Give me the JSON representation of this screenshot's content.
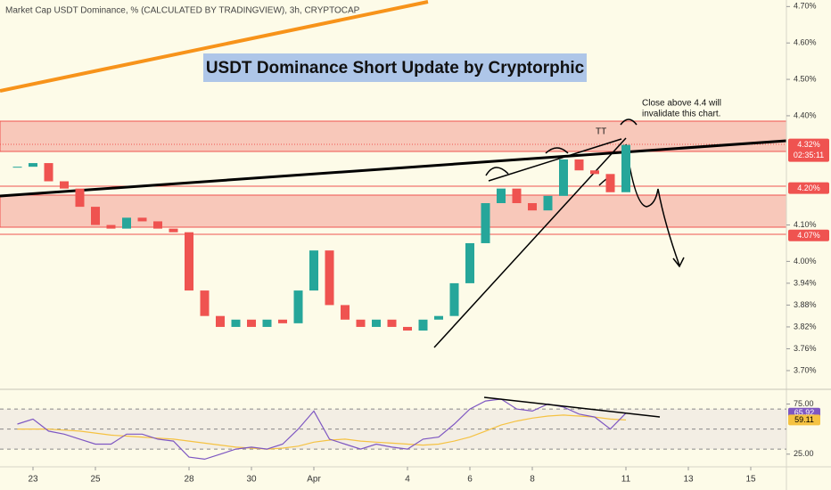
{
  "chart_data": {
    "type": "candlestick",
    "subtitle": "Market Cap USDT Dominance, % (CALCULATED BY TRADINGVIEW), 3h, CRYPTOCAP",
    "title": "USDT Dominance Short Update by Cryptorphic",
    "categories": [
      null,
      "23",
      null,
      null,
      null,
      "25",
      null,
      null,
      null,
      null,
      null,
      "28",
      null,
      null,
      null,
      "30",
      null,
      null,
      null,
      "Apr",
      null,
      null,
      null,
      null,
      null,
      "4",
      null,
      null,
      null,
      "6",
      null,
      null,
      null,
      "8",
      null,
      null,
      null,
      null,
      null,
      "11",
      null,
      null,
      null,
      "13",
      null,
      null,
      null,
      "15",
      null
    ],
    "values": [
      4.26,
      4.27,
      4.22,
      4.2,
      4.15,
      4.1,
      4.09,
      4.12,
      4.11,
      4.09,
      4.08,
      3.92,
      3.85,
      3.82,
      3.84,
      3.82,
      3.84,
      3.83,
      3.92,
      4.03,
      3.88,
      3.84,
      3.82,
      3.84,
      3.82,
      3.81,
      3.84,
      3.85,
      3.94,
      4.05,
      4.16,
      4.2,
      4.16,
      4.14,
      4.18,
      4.28,
      4.25,
      4.24,
      4.19,
      4.32,
      null,
      null,
      null,
      null,
      null,
      null,
      null,
      null,
      null
    ],
    "up_color": "#26a69a",
    "down_color": "#ef5350",
    "ylim": [
      3.651,
      4.718
    ],
    "yticks": [
      {
        "value": 4.7,
        "label": "4.70%"
      },
      {
        "value": 4.6,
        "label": "4.60%"
      },
      {
        "value": 4.5,
        "label": "4.50%"
      },
      {
        "value": 4.4,
        "label": "4.40%"
      },
      {
        "value": 4.1,
        "label": "4.10%"
      },
      {
        "value": 4.0,
        "label": "4.00%"
      },
      {
        "value": 3.94,
        "label": "3.94%"
      },
      {
        "value": 3.88,
        "label": "3.88%"
      },
      {
        "value": 3.82,
        "label": "3.82%"
      },
      {
        "value": 3.76,
        "label": "3.76%"
      },
      {
        "value": 3.7,
        "label": "3.70%"
      }
    ],
    "price_tags": [
      {
        "value": 4.32,
        "label": "4.32%",
        "sub": "02:35:11"
      },
      {
        "value": 4.2,
        "label": "4.20%"
      },
      {
        "value": 4.07,
        "label": "4.07%"
      }
    ],
    "tag_color": "#ef5350",
    "annotations": [
      "Close above 4.4 will",
      "invalidate this chart.",
      "TT"
    ],
    "rsi": {
      "ylim": [
        15,
        87
      ],
      "yticks": [
        {
          "value": 75,
          "label": "75.00"
        },
        {
          "value": 25,
          "label": "25.00"
        }
      ],
      "levels": [
        70,
        50,
        30
      ],
      "color": "#7e57c2",
      "ma_color": "#f5c242",
      "values": [
        55,
        60,
        48,
        45,
        40,
        35,
        35,
        45,
        45,
        40,
        38,
        22,
        20,
        25,
        30,
        32,
        30,
        35,
        50,
        68,
        40,
        35,
        30,
        35,
        32,
        30,
        40,
        42,
        55,
        70,
        78,
        80,
        70,
        68,
        75,
        72,
        65,
        62,
        50,
        65.92,
        null,
        null,
        null,
        null,
        null,
        null,
        null,
        null,
        null
      ],
      "ma_values": [
        50,
        50,
        50,
        49,
        48,
        46,
        44,
        43,
        42,
        41,
        40,
        38,
        36,
        34,
        32,
        31,
        30,
        31,
        33,
        37,
        39,
        40,
        38,
        37,
        36,
        35,
        34,
        35,
        38,
        42,
        48,
        54,
        58,
        61,
        63,
        64,
        63,
        62,
        60,
        59.11,
        null,
        null,
        null,
        null,
        null,
        null,
        null,
        null,
        null
      ]
    }
  }
}
